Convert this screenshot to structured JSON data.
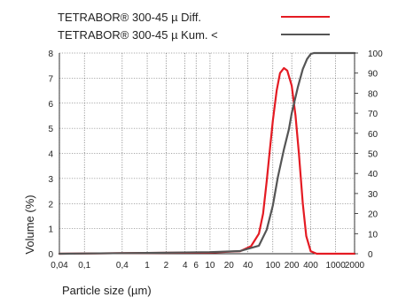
{
  "chart_data": {
    "type": "line",
    "title": "",
    "xlabel": "Particle size (µm)",
    "ylabel": "Volume (%)",
    "x_scale": "log",
    "x_ticks": [
      0.04,
      0.1,
      0.4,
      1,
      2,
      4,
      6,
      10,
      20,
      40,
      100,
      200,
      400,
      1000,
      2000
    ],
    "x_tick_labels": [
      "0,04",
      "0,1",
      "0,4",
      "1",
      "2",
      "4",
      "6",
      "10",
      "20",
      "40",
      "100",
      "200",
      "400",
      "1000",
      "2000"
    ],
    "xlim": [
      0.04,
      2000
    ],
    "ylim_left": [
      0,
      8
    ],
    "y_ticks_left": [
      0,
      1,
      2,
      3,
      4,
      5,
      6,
      7,
      8
    ],
    "ylim_right": [
      0,
      100
    ],
    "y_ticks_right": [
      0,
      10,
      20,
      30,
      40,
      50,
      60,
      70,
      80,
      90,
      100
    ],
    "grid": true,
    "legend_position": "top",
    "series": [
      {
        "name": "TETRABOR® 300-45 µ Diff.",
        "color": "#e41b23",
        "axis": "left",
        "x": [
          0.04,
          1,
          10,
          30,
          45,
          60,
          70,
          80,
          90,
          100,
          115,
          130,
          150,
          170,
          200,
          230,
          260,
          300,
          340,
          400,
          500,
          2000
        ],
        "y": [
          0,
          0.03,
          0.05,
          0.1,
          0.3,
          0.8,
          1.6,
          2.9,
          4.2,
          5.3,
          6.5,
          7.2,
          7.4,
          7.3,
          6.7,
          5.5,
          4.0,
          2.0,
          0.7,
          0.1,
          0,
          0
        ]
      },
      {
        "name": "TETRABOR® 300-45 µ Kum. <",
        "color": "#555555",
        "axis": "right",
        "x": [
          0.04,
          1,
          10,
          30,
          60,
          80,
          100,
          120,
          150,
          180,
          200,
          250,
          300,
          350,
          400,
          450,
          500,
          2000
        ],
        "y": [
          0,
          0.4,
          0.8,
          1.3,
          4,
          12,
          24,
          38,
          52,
          62,
          70,
          83,
          92,
          97,
          99.5,
          100,
          100,
          100
        ]
      }
    ]
  }
}
